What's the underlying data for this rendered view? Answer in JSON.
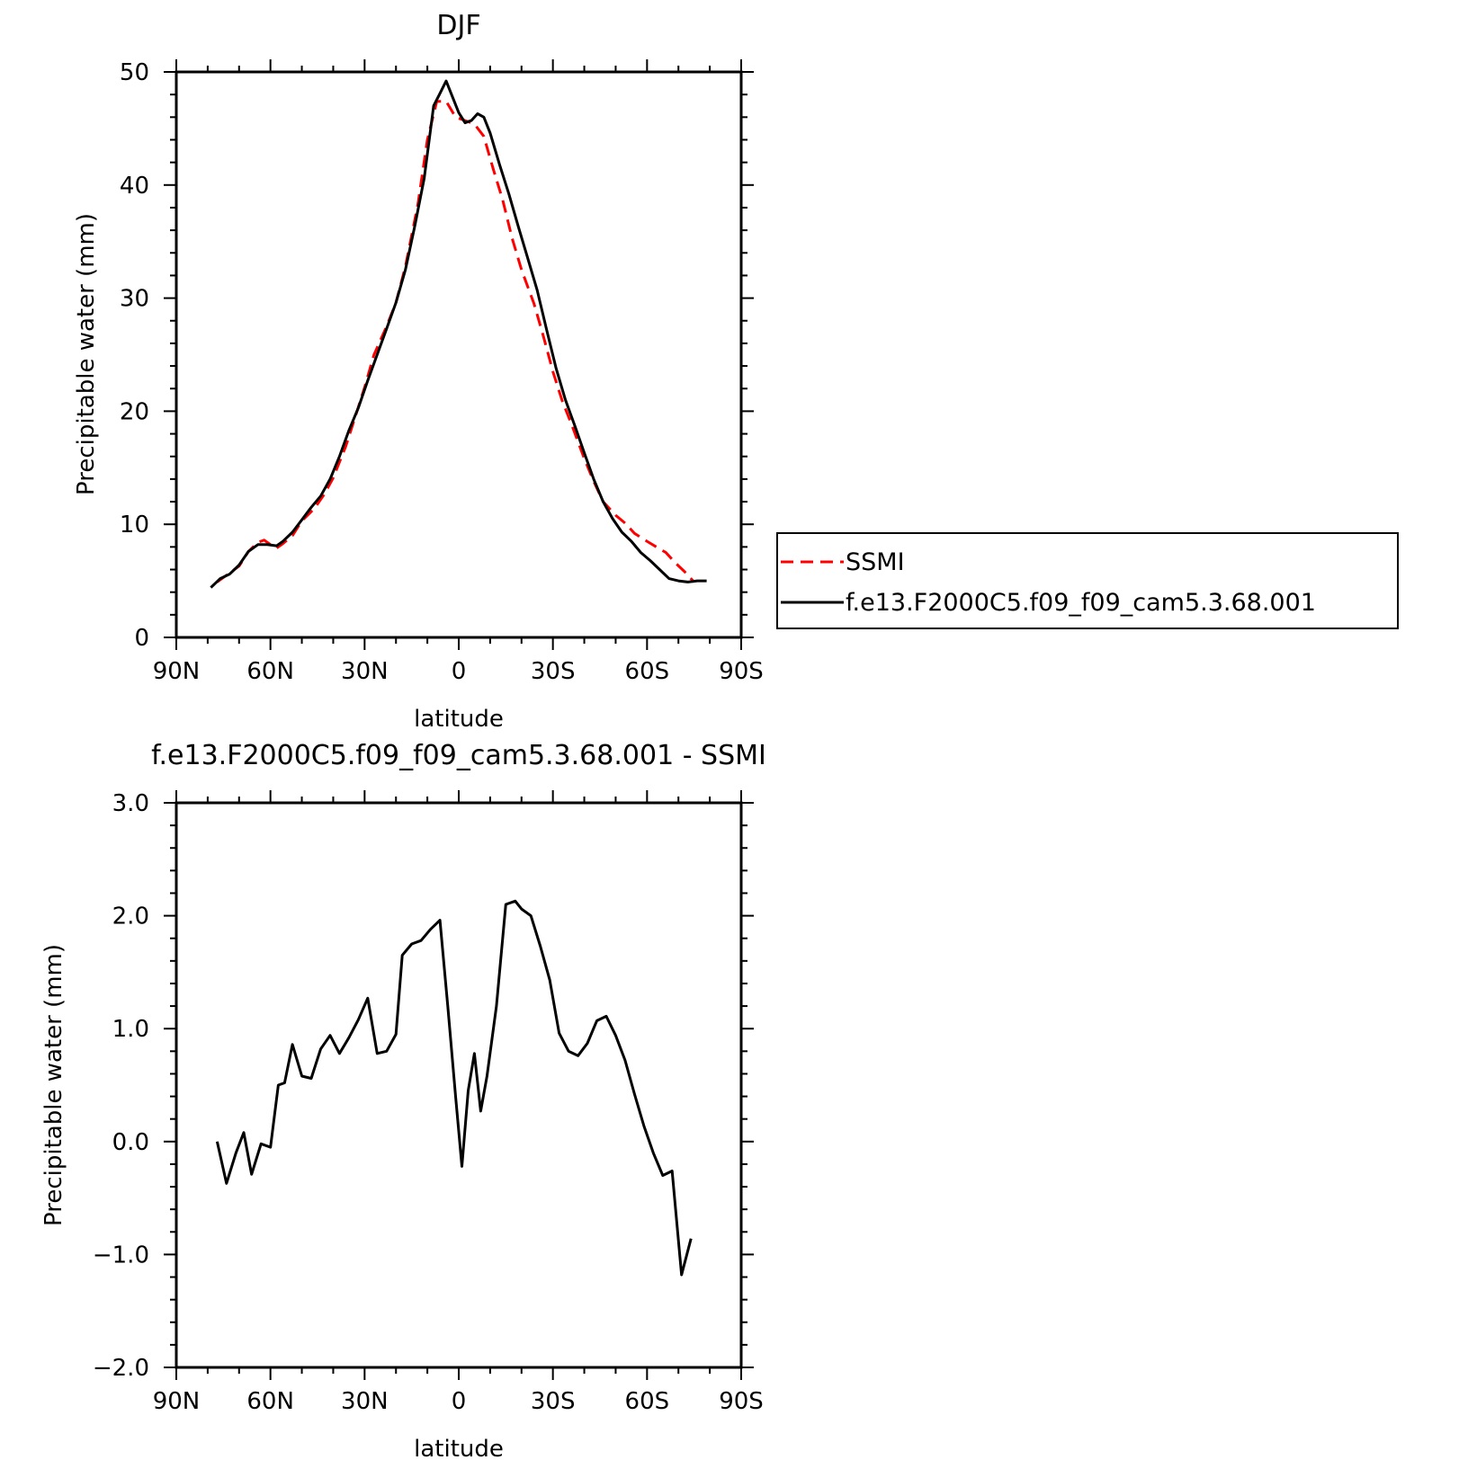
{
  "chart_data": [
    {
      "type": "line",
      "title": "DJF",
      "xlabel": "latitude",
      "ylabel": "Precipitable water (mm)",
      "xlim": [
        90,
        -90
      ],
      "ylim": [
        0,
        50
      ],
      "x_ticks": [
        90,
        60,
        30,
        0,
        -30,
        -60,
        -90
      ],
      "x_tick_labels": [
        "90N",
        "60N",
        "30N",
        "0",
        "30S",
        "60S",
        "90S"
      ],
      "y_ticks": [
        0,
        10,
        20,
        30,
        40,
        50
      ],
      "y_tick_labels": [
        "0",
        "10",
        "20",
        "30",
        "40",
        "50"
      ],
      "legend": {
        "position": "right"
      },
      "series": [
        {
          "name": "SSMI",
          "color": "#ff0000",
          "dash": "dashed",
          "x": [
            77,
            73,
            70,
            67,
            64,
            62,
            60,
            58,
            56,
            53,
            50,
            46,
            43,
            40,
            36,
            33,
            30,
            27,
            23,
            20,
            17,
            13,
            10,
            7,
            4,
            1,
            -2,
            -5,
            -8,
            -11,
            -14,
            -17,
            -20,
            -24,
            -27,
            -30,
            -33,
            -36,
            -40,
            -43,
            -46,
            -50,
            -53,
            -56,
            -60,
            -63,
            -66,
            -69,
            -72,
            -74,
            -75
          ],
          "y": [
            4.9,
            5.7,
            6.3,
            7.6,
            8.4,
            8.6,
            8.2,
            7.9,
            8.3,
            9.0,
            10.3,
            11.4,
            12.6,
            14.1,
            16.9,
            19.5,
            22.1,
            25.0,
            27.5,
            29.6,
            32.8,
            38.3,
            44.0,
            47.4,
            47.4,
            46.0,
            45.7,
            45.4,
            44.3,
            41.4,
            38.7,
            35.3,
            32.5,
            29.5,
            26.6,
            23.5,
            20.9,
            18.8,
            15.8,
            13.8,
            12.0,
            10.8,
            10.1,
            9.2,
            8.5,
            8.0,
            7.5,
            6.6,
            5.8,
            5.2,
            4.9
          ]
        },
        {
          "name": "f.e13.F2000C5.f09_f09_cam5.3.68.001",
          "color": "#000000",
          "dash": "solid",
          "x": [
            79,
            76,
            73,
            70,
            67,
            64,
            61,
            58,
            56,
            53,
            50,
            47,
            44,
            41,
            38,
            35,
            32,
            29,
            26,
            23,
            20,
            17,
            14,
            11,
            8,
            6,
            4,
            2,
            0,
            -2,
            -4,
            -6,
            -8,
            -10,
            -13,
            -16,
            -19,
            -22,
            -25,
            -28,
            -31,
            -34,
            -37,
            -40,
            -43,
            -46,
            -49,
            -52,
            -55,
            -58,
            -61,
            -64,
            -67,
            -70,
            -73,
            -76,
            -79
          ],
          "y": [
            4.4,
            5.2,
            5.6,
            6.4,
            7.6,
            8.2,
            8.2,
            8.1,
            8.5,
            9.3,
            10.4,
            11.5,
            12.5,
            14.0,
            16.0,
            18.3,
            20.3,
            22.7,
            25.0,
            27.3,
            29.6,
            32.5,
            36.4,
            40.6,
            47.0,
            48.1,
            49.2,
            47.8,
            46.4,
            45.5,
            45.7,
            46.3,
            46.0,
            44.6,
            41.8,
            39.2,
            36.3,
            33.5,
            30.7,
            27.2,
            23.8,
            21.0,
            18.7,
            16.3,
            14.0,
            12.0,
            10.5,
            9.3,
            8.5,
            7.5,
            6.8,
            6.0,
            5.2,
            5.0,
            4.9,
            5.0,
            5.0
          ]
        }
      ]
    },
    {
      "type": "line",
      "title": "f.e13.F2000C5.f09_f09_cam5.3.68.001 - SSMI",
      "xlabel": "latitude",
      "ylabel": "Precipitable water (mm)",
      "xlim": [
        90,
        -90
      ],
      "ylim": [
        -2.0,
        3.0
      ],
      "x_ticks": [
        90,
        60,
        30,
        0,
        -30,
        -60,
        -90
      ],
      "x_tick_labels": [
        "90N",
        "60N",
        "30N",
        "0",
        "30S",
        "60S",
        "90S"
      ],
      "y_ticks": [
        -2,
        -1,
        0,
        1,
        2,
        3
      ],
      "y_tick_labels": [
        "−2.0",
        "−1.0",
        "0.0",
        "1.0",
        "2.0",
        "3.0"
      ],
      "series": [
        {
          "color": "#000000",
          "dash": "solid",
          "x": [
            77,
            74,
            71,
            68.5,
            66,
            63,
            60,
            57.5,
            55.5,
            53,
            50,
            47,
            44,
            41,
            38,
            35,
            32,
            29,
            26,
            23,
            20,
            18,
            15,
            12,
            9,
            6,
            3.5,
            1,
            -1,
            -3,
            -5,
            -7,
            -9,
            -12,
            -15,
            -18,
            -20,
            -23,
            -26,
            -29,
            -32,
            -35,
            -38,
            -41,
            -44,
            -47,
            -50,
            -53,
            -56,
            -59,
            -62,
            -65,
            -68,
            -71,
            -74
          ],
          "y": [
            0.0,
            -0.37,
            -0.1,
            0.08,
            -0.29,
            -0.02,
            -0.05,
            0.5,
            0.52,
            0.86,
            0.58,
            0.56,
            0.82,
            0.94,
            0.78,
            0.92,
            1.08,
            1.27,
            0.78,
            0.8,
            0.95,
            1.65,
            1.75,
            1.78,
            1.88,
            1.96,
            1.2,
            0.4,
            -0.22,
            0.45,
            0.78,
            0.27,
            0.58,
            1.2,
            2.1,
            2.13,
            2.06,
            2.0,
            1.73,
            1.43,
            0.96,
            0.8,
            0.76,
            0.87,
            1.07,
            1.11,
            0.94,
            0.72,
            0.42,
            0.14,
            -0.1,
            -0.3,
            -0.26,
            -1.18,
            -0.86
          ]
        }
      ]
    }
  ]
}
